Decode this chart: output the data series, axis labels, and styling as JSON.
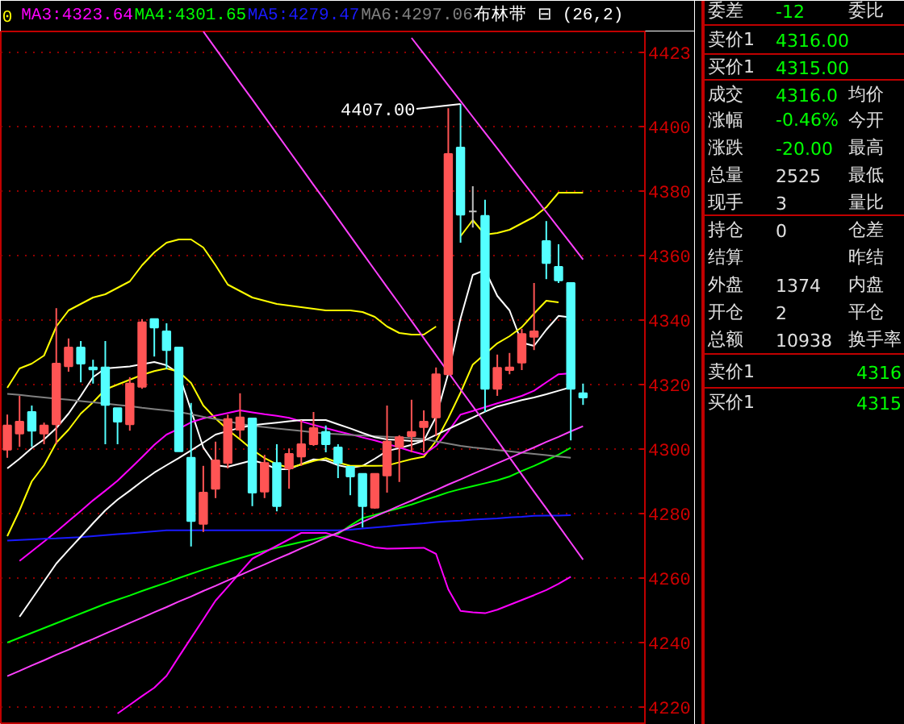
{
  "chart_data": [
    {
      "type": "candlestick",
      "title": "布林带 ⊟ (26,2)",
      "annotations": [
        "0",
        "4407.00"
      ],
      "categories": [
        null,
        null,
        null,
        null,
        null,
        null,
        null,
        null,
        null,
        null,
        null,
        null,
        null,
        null,
        null,
        null,
        null,
        null,
        null,
        null,
        null,
        null,
        null,
        null,
        null,
        null,
        null,
        null,
        null,
        null,
        null,
        null,
        null,
        null,
        null,
        null,
        null,
        null,
        null,
        null,
        null,
        null,
        null,
        null,
        null,
        null,
        null,
        null
      ],
      "ohlc": [
        [
          4299.8,
          4310.7,
          4297.3,
          4307.3
        ],
        [
          4304.8,
          4316.5,
          4300.7,
          4308.5
        ],
        [
          4311.5,
          4313.5,
          4300.7,
          4305.7
        ],
        [
          4304.8,
          4308.2,
          4301.5,
          4307.3
        ],
        [
          4307.7,
          4343.7,
          4301.5,
          4326.5
        ],
        [
          4325.7,
          4334.3,
          4324,
          4331.5
        ],
        [
          4331.5,
          4333.5,
          4320.7,
          4326.5
        ],
        [
          4325.3,
          4327.7,
          4320.3,
          4324.7
        ],
        [
          4325.3,
          4333.5,
          4301.5,
          4313.7
        ],
        [
          4312.7,
          4312.7,
          4301.5,
          4308.5
        ],
        [
          4307.7,
          4322.3,
          4305.7,
          4320.3
        ],
        [
          4319.3,
          4340.3,
          4318.7,
          4339.3
        ],
        [
          4340.3,
          4340.3,
          4328.7,
          4337.7
        ],
        [
          4336.5,
          4339,
          4324.8,
          4330.7
        ],
        [
          4331.5,
          4331.5,
          4299.3,
          4299.3
        ],
        [
          4297.3,
          4314.3,
          4269.8,
          4277.7
        ],
        [
          4276.8,
          4294.8,
          4274.3,
          4286.5
        ],
        [
          4287.7,
          4302.3,
          4284.8,
          4296.5
        ],
        [
          4295.7,
          4310.7,
          4294,
          4309.3
        ],
        [
          4306,
          4317.3,
          4303.2,
          4309.8
        ],
        [
          4309.5,
          4309.5,
          4282.3,
          4286.5
        ],
        [
          4286.8,
          4298.2,
          4284.8,
          4295.7
        ],
        [
          4295.7,
          4301.5,
          4280.7,
          4282.3
        ],
        [
          4294,
          4300.2,
          4287.7,
          4298.5
        ],
        [
          4297.7,
          4309,
          4294.8,
          4301.5
        ],
        [
          4301.5,
          4311.5,
          4301,
          4306.5
        ],
        [
          4305.3,
          4307.3,
          4299,
          4301.5
        ],
        [
          4300.5,
          4301.5,
          4291,
          4295.7
        ],
        [
          4294.5,
          4294.5,
          4285.7,
          4291.5
        ],
        [
          4292.3,
          4292.3,
          4275.7,
          4282.3
        ],
        [
          4281.8,
          4292.3,
          4281.5,
          4292.3
        ],
        [
          4291.8,
          4313.5,
          4286.5,
          4302.3
        ],
        [
          4300.7,
          4304.3,
          4289.8,
          4303.7
        ],
        [
          4304,
          4315.3,
          4299,
          4305.3
        ],
        [
          4306.8,
          4312,
          4299,
          4308.5
        ],
        [
          4309.8,
          4325.3,
          4304,
          4323.2
        ],
        [
          4323.2,
          4405.7,
          4323.2,
          4391.5
        ],
        [
          4393.5,
          4407,
          4364,
          4372.7
        ],
        [
          4373.7,
          4381.5,
          4368.7,
          4373.7
        ],
        [
          4372.3,
          4377.3,
          4311.5,
          4318.7
        ],
        [
          4318.7,
          4329.3,
          4316.5,
          4325.2
        ],
        [
          4324.5,
          4329.8,
          4323.2,
          4325.3
        ],
        [
          4326.8,
          4337.3,
          4324.5,
          4335.7
        ],
        [
          4334.8,
          4351.5,
          4330.7,
          4336.5
        ],
        [
          4364.5,
          4370.7,
          4352.7,
          4357.7
        ],
        [
          4356.5,
          4363.5,
          4351.5,
          4352.3
        ],
        [
          4351.5,
          4351.5,
          4302.7,
          4318.7
        ],
        [
          4317.3,
          4320.3,
          4313.7,
          4316
        ]
      ],
      "colors": [
        "#ff5454",
        "#ff5454",
        "#54ffff",
        "#ff5454",
        "#ff5454",
        "#ff5454",
        "#54ffff",
        "#54ffff",
        "#54ffff",
        "#54ffff",
        "#ff5454",
        "#ff5454",
        "#54ffff",
        "#54ffff",
        "#54ffff",
        "#54ffff",
        "#ff5454",
        "#ff5454",
        "#ff5454",
        "#ff5454",
        "#54ffff",
        "#ff5454",
        "#54ffff",
        "#ff5454",
        "#ff5454",
        "#ff5454",
        "#54ffff",
        "#54ffff",
        "#54ffff",
        "#54ffff",
        "#ff5454",
        "#ff5454",
        "#ff5454",
        "#ff5454",
        "#ff5454",
        "#ff5454",
        "#ff5454",
        "#54ffff",
        "#c0c0c0",
        "#54ffff",
        "#ff5454",
        "#ff5454",
        "#ff5454",
        "#ff5454",
        "#54ffff",
        "#54ffff",
        "#54ffff",
        "#54ffff"
      ],
      "series": [
        {
          "type": "line",
          "color": "#ffffff",
          "values": [
            4294,
            4297,
            4300.3,
            4303,
            4306.5,
            4311,
            4316.5,
            4322.3,
            4325,
            4325.3,
            4325.6,
            4326.3,
            4327,
            4326,
            4323.5,
            4312,
            4300.5,
            4295,
            4294.5,
            4295.5,
            4296.5,
            4295.5,
            4293.7,
            4293.8,
            4295.3,
            4296.8,
            4296.5,
            4295,
            4294.2,
            4294.8,
            4297,
            4299.4,
            4300.3,
            4301.3,
            4302.6,
            4310,
            4323.5,
            4340.5,
            4354,
            4355.5,
            4347.5,
            4343,
            4333,
            4332,
            4337,
            4341.3,
            4340.8,
            null
          ]
        },
        {
          "type": "line",
          "color": "#ffff00",
          "values": [
            4273,
            4281,
            4290,
            4295,
            4302,
            4306,
            4311,
            4314.5,
            4318.5,
            4320,
            4321.5,
            4323,
            4324.2,
            4325,
            4324,
            4320.5,
            4313.5,
            4309.5,
            4306,
            4303,
            4299.8,
            4297.2,
            4295.3,
            4294.2,
            4295.2,
            4296.3,
            4297.2,
            4295.8,
            4294.8,
            4294.8,
            4294.8,
            4294.9,
            4295.9,
            4296.9,
            4297.6,
            4302.5,
            4309.6,
            4317.5,
            4326.2,
            4329.5,
            4332.8,
            4335,
            4337.8,
            4342,
            4346,
            4345.5,
            null,
            null
          ]
        },
        {
          "type": "line",
          "name": "MA3:4323.64",
          "color": "#ff00ff",
          "values": [
            null,
            4265.3,
            4268.3,
            4271.3,
            4274.4,
            4277.6,
            4280.8,
            4284.1,
            4287.1,
            4290.2,
            4293.8,
            4297.5,
            4301.3,
            4304.5,
            4306.3,
            4308.3,
            4309.5,
            4310.4,
            4311.2,
            4312,
            4311.4,
            4310.8,
            4310.3,
            4309.7,
            4308.6,
            4307.5,
            4306.5,
            4305.5,
            4304.6,
            4303.6,
            4302.7,
            4301.6,
            4300.5,
            4299.3,
            4298.3,
            4301,
            4305.5,
            4310.7,
            4311.8,
            4313,
            4314.2,
            4315.3,
            4316.5,
            4318.1,
            4320.7,
            4323.2,
            4323.5,
            null
          ]
        },
        {
          "type": "line",
          "name": "MA4:4301.65",
          "color": "#00ff00",
          "values": [
            4240,
            4241.5,
            4243,
            4244.5,
            4246,
            4247.5,
            4249,
            4250.5,
            4252,
            4253.3,
            4254.6,
            4256,
            4257.3,
            4258.6,
            4260,
            4261.3,
            4262.6,
            4263.8,
            4265,
            4266.2,
            4267.3,
            4268.4,
            4269.4,
            4270.3,
            4271.2,
            4272,
            4272.9,
            4273.7,
            4276.3,
            4278.6,
            4279.6,
            4280.7,
            4281.7,
            4282.8,
            4284.1,
            4285.3,
            4286.6,
            4287.6,
            4288.5,
            4289.4,
            4290.3,
            4291.5,
            4293.2,
            4294.8,
            4296.5,
            4298.3,
            4300.4,
            null
          ]
        },
        {
          "type": "line",
          "name": "MA5:4279.47",
          "color": "#1a1aff",
          "values": [
            4271.6,
            4271.8,
            4272,
            4272.2,
            4272.3,
            4272.5,
            4272.7,
            4273,
            4273.3,
            4273.6,
            4273.9,
            4274.2,
            4274.5,
            4274.8,
            4274.8,
            4274.8,
            4274.8,
            4274.8,
            4274.8,
            4274.8,
            4274.8,
            4274.8,
            4274.8,
            4274.8,
            4274.8,
            4274.8,
            4274.8,
            4274.8,
            4275,
            4275.4,
            4275.7,
            4276,
            4276.4,
            4276.7,
            4277,
            4277.4,
            4277.6,
            4277.8,
            4278.1,
            4278.3,
            4278.5,
            4278.8,
            4279,
            4279.3,
            4279.4,
            4279.4,
            4279.5,
            null
          ]
        },
        {
          "type": "line",
          "name": "MA6:4297.06",
          "color": "#808080",
          "values": [
            4317.1,
            4316.8,
            4316.4,
            4316,
            4315.6,
            4315.3,
            4314.9,
            4314.5,
            4314.1,
            4313.7,
            4313.3,
            4312.8,
            4312.4,
            4312,
            4311.5,
            4310.8,
            4310,
            4309.3,
            4308.6,
            4307.8,
            4307.2,
            4306.8,
            4306.4,
            4306,
            4305.6,
            4305.2,
            4304.8,
            4304.6,
            4304.4,
            4304.2,
            4304,
            4303.8,
            4303.6,
            4303.4,
            4303.1,
            4302.4,
            4301.7,
            4301,
            4300.5,
            4300.1,
            4299.7,
            4299.3,
            4298.9,
            4298.5,
            4298.1,
            4297.7,
            4297.3,
            null
          ]
        },
        {
          "type": "line",
          "color": "#ffff00",
          "values": [
            4319,
            4325,
            4326.5,
            4329,
            4338,
            4343,
            4345,
            4347,
            4348,
            4350,
            4352,
            4357,
            4361,
            4364,
            4365,
            4365,
            4362.5,
            4357,
            4351,
            4349,
            4347,
            4346,
            4345,
            4344.5,
            4344,
            4343.5,
            4343,
            4343,
            4343,
            4342.5,
            4341,
            4338,
            4336,
            4335.5,
            4335.5,
            4338,
            null,
            4366,
            4371,
            4366.5,
            4367,
            4368,
            4370,
            4372,
            4375,
            4379.5,
            4379.5,
            4379.5
          ]
        },
        {
          "type": "line",
          "color": "#ffffff",
          "values": [
            null,
            4248,
            4253.5,
            4259,
            4264.5,
            4268.7,
            4272.8,
            4277,
            4281,
            4284.3,
            4287.1,
            4290,
            4292.7,
            4295,
            4297.2,
            4299.6,
            4302,
            4304.5,
            4305.6,
            4306.6,
            4307.4,
            4307.8,
            4308.2,
            4308.6,
            4309,
            4309,
            4309,
            4307.7,
            4306.4,
            4305,
            4303.7,
            4303,
            4302.8,
            4302.5,
            4302.6,
            4304.4,
            4306.2,
            4308,
            4309.8,
            4311.6,
            4313.2,
            4314.2,
            4315.2,
            4316,
            4317,
            4318.1,
            4319.2,
            null
          ]
        },
        {
          "type": "line",
          "color": "#ff00ff",
          "values": [
            null,
            null,
            null,
            null,
            null,
            null,
            null,
            null,
            null,
            4218,
            4220.7,
            4223.4,
            4226,
            4229.7,
            4235.6,
            4241.4,
            4247.2,
            4253,
            4257.3,
            4261.7,
            4266,
            4268,
            4270,
            4272,
            4274,
            4274,
            4274,
            4272.9,
            4271.7,
            4270.6,
            4269.5,
            4269.1,
            4269.2,
            4269.3,
            4269.4,
            4267.5,
            4256.5,
            4249.8,
            4249.4,
            4249.1,
            4250.2,
            4251.7,
            4253.2,
            4254.7,
            4256.3,
            4258.2,
            4260.4,
            null
          ]
        },
        {
          "type": "line",
          "color": "#ff40ff",
          "values": [
            null,
            null,
            null,
            null,
            null,
            null,
            null,
            null,
            null,
            null,
            null,
            null,
            null,
            null,
            null,
            null,
            4429.5,
            4424.2,
            4418.9,
            4413.6,
            4408.4,
            4403.1,
            4397.8,
            4392.5,
            4387.2,
            4381.9,
            4376.7,
            4371.4,
            4366.1,
            4360.8,
            4355.5,
            4350.2,
            4345,
            4339.7,
            4334.4,
            4329.1,
            4323.8,
            4318.5,
            4313.3,
            4308,
            4302.7,
            4297.4,
            4292.1,
            4286.8,
            4281.6,
            4276.3,
            4271,
            4265.7
          ]
        },
        {
          "type": "line",
          "color": "#ff40ff",
          "values": [
            null,
            null,
            null,
            null,
            null,
            null,
            null,
            null,
            null,
            null,
            null,
            null,
            null,
            null,
            null,
            null,
            null,
            null,
            null,
            null,
            null,
            null,
            null,
            null,
            null,
            null,
            null,
            null,
            null,
            null,
            null,
            null,
            null,
            4427.5,
            4422.6,
            4417.7,
            4412.8,
            4407.9,
            4403,
            4398.1,
            4393.2,
            4388.2,
            4383.3,
            4378.4,
            4373.5,
            4368.6,
            4363.7,
            4358.8
          ]
        },
        {
          "type": "line",
          "color": "#ff40ff",
          "values": [
            4229.6,
            4231.2,
            4232.9,
            4234.5,
            4236.2,
            4237.8,
            4239.5,
            4241.1,
            4242.8,
            4244.4,
            4246.1,
            4247.7,
            4249.4,
            4251,
            4252.7,
            4254.3,
            4256,
            4257.6,
            4259.3,
            4260.9,
            4262.6,
            4264.2,
            4265.9,
            4267.5,
            4269.2,
            4270.8,
            4272.5,
            4274.1,
            4275.8,
            4277.4,
            4279.1,
            4280.7,
            4282.4,
            4284,
            4285.7,
            4287.3,
            4289,
            4290.6,
            4292.3,
            4293.9,
            4295.6,
            4297.2,
            4298.9,
            4300.5,
            4302.2,
            4303.8,
            4305.5,
            4307.1
          ]
        }
      ],
      "ylim": [
        4214.5,
        4429.5
      ],
      "yticks": [
        4220,
        4240,
        4260,
        4280,
        4300,
        4320,
        4340,
        4360,
        4380,
        4400,
        {
          "value": 4423,
          "label": "4423"
        }
      ],
      "tick_labels": "y",
      "grid": "y"
    },
    {
      "type": "other",
      "cell_labels": [
        [
          "委差",
          "-12",
          "委比"
        ],
        [
          "卖价1",
          "4316.00",
          null
        ],
        [
          "买价1",
          "4315.00",
          null
        ],
        [
          "成交",
          "4316.0",
          "均价"
        ],
        [
          "涨幅",
          "-0.46%",
          "今开"
        ],
        [
          "涨跌",
          "-20.00",
          "最高"
        ],
        [
          "总量",
          "2525",
          "最低"
        ],
        [
          "现手",
          "3",
          "量比"
        ],
        [
          "持仓",
          "0",
          "仓差"
        ],
        [
          "结算",
          null,
          "昨结"
        ],
        [
          "外盘",
          "1374",
          "内盘"
        ],
        [
          "开仓",
          "2",
          "平仓"
        ],
        [
          "总额",
          "10938",
          "换手率"
        ],
        [
          "卖价1",
          null,
          "4316"
        ],
        [
          "买价1",
          null,
          "4315"
        ]
      ],
      "colors": [
        [
          "#e0e0e0",
          "#00ff00",
          "#e0e0e0"
        ],
        [
          "#e0e0e0",
          "#00ff00",
          "#e0e0e0"
        ],
        [
          "#e0e0e0",
          "#00ff00",
          "#e0e0e0"
        ],
        [
          "#e0e0e0",
          "#00ff00",
          "#e0e0e0"
        ],
        [
          "#e0e0e0",
          "#00ff00",
          "#e0e0e0"
        ],
        [
          "#e0e0e0",
          "#00ff00",
          "#e0e0e0"
        ],
        [
          "#e0e0e0",
          "#e0e0e0",
          "#e0e0e0"
        ],
        [
          "#e0e0e0",
          "#e0e0e0",
          "#e0e0e0"
        ],
        [
          "#e0e0e0",
          "#e0e0e0",
          "#e0e0e0"
        ],
        [
          "#e0e0e0",
          "#e0e0e0",
          "#e0e0e0"
        ],
        [
          "#e0e0e0",
          "#e0e0e0",
          "#e0e0e0"
        ],
        [
          "#e0e0e0",
          "#e0e0e0",
          "#e0e0e0"
        ],
        [
          "#e0e0e0",
          "#e0e0e0",
          "#e0e0e0"
        ],
        [
          "#e0e0e0",
          "#e0e0e0",
          "#00ff00"
        ],
        [
          "#e0e0e0",
          "#e0e0e0",
          "#00ff00"
        ]
      ]
    }
  ]
}
